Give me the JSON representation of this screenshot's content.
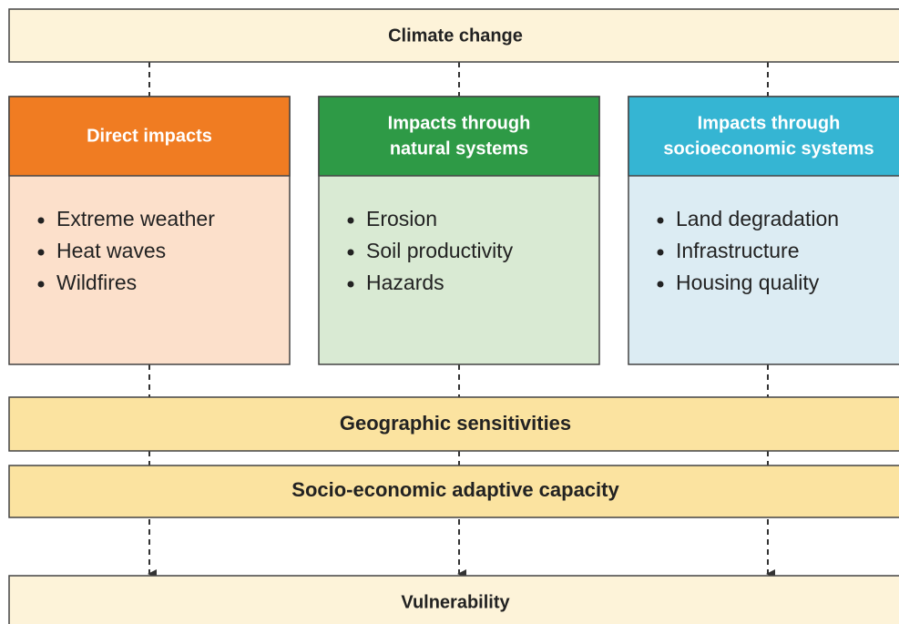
{
  "top": {
    "title": "Climate change"
  },
  "columns": [
    {
      "header": [
        "Direct impacts"
      ],
      "items": [
        "Extreme weather",
        "Heat waves",
        "Wildfires"
      ]
    },
    {
      "header": [
        "Impacts through",
        "natural systems"
      ],
      "items": [
        "Erosion",
        "Soil productivity",
        "Hazards"
      ]
    },
    {
      "header": [
        "Impacts through",
        "socioeconomic systems"
      ],
      "items": [
        "Land degradation",
        "Infrastructure",
        "Housing quality"
      ]
    }
  ],
  "bands": [
    "Geographic sensitivities",
    "Socio-economic adaptive capacity"
  ],
  "bottom": {
    "title": "Vulnerability"
  }
}
